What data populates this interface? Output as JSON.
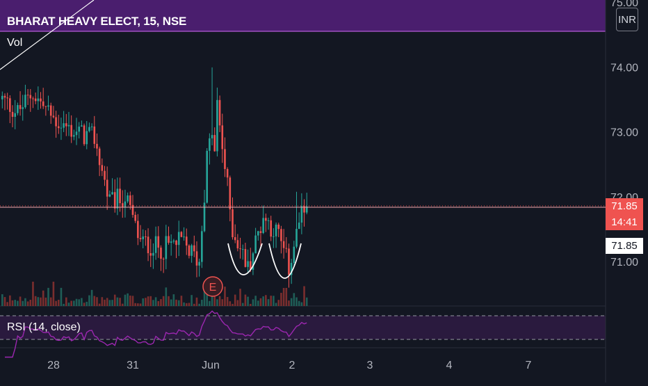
{
  "header": {
    "title": "BHARAT HEAVY ELECT, 15, NSE",
    "currency": "INR"
  },
  "panes": {
    "volume_label": "Vol",
    "rsi_label": "RSI (14, close)"
  },
  "price_tags": {
    "last_price": "71.85",
    "countdown": "14:41",
    "reference_price": "71.85"
  },
  "earnings_marker": "E",
  "colors": {
    "up": "#26a69a",
    "down": "#ef5350",
    "rsi": "#9c27b0",
    "background": "#131722",
    "highlight": "#4a1e6e"
  },
  "chart_data": {
    "type": "candlestick",
    "interval": "15",
    "price_axis": {
      "ticks": [
        "75.00",
        "74.00",
        "73.00",
        "72.00",
        "71.00"
      ],
      "range": [
        70.25,
        75.15
      ]
    },
    "time_axis": {
      "ticks": [
        "28",
        "31",
        "Jun",
        "2",
        "3",
        "4",
        "7"
      ]
    },
    "last_price": 71.85,
    "rsi": {
      "period": 14,
      "source": "close",
      "levels": [
        70,
        30
      ]
    },
    "series": [
      {
        "name": "candles",
        "kps": [
          {
            "i": 0,
            "p": 73.5
          },
          {
            "i": 6,
            "p": 73.3
          },
          {
            "i": 12,
            "p": 73.6
          },
          {
            "i": 20,
            "p": 73.2
          },
          {
            "i": 28,
            "p": 73.0
          },
          {
            "i": 36,
            "p": 72.9
          },
          {
            "i": 42,
            "p": 71.9
          },
          {
            "i": 48,
            "p": 72.0
          },
          {
            "i": 54,
            "p": 71.3
          },
          {
            "i": 62,
            "p": 71.2
          },
          {
            "i": 70,
            "p": 71.3
          },
          {
            "i": 77,
            "p": 71.0
          },
          {
            "i": 80,
            "p": 72.6
          },
          {
            "i": 84,
            "p": 73.4
          },
          {
            "i": 90,
            "p": 71.5
          },
          {
            "i": 96,
            "p": 70.9
          },
          {
            "i": 102,
            "p": 71.7
          },
          {
            "i": 108,
            "p": 71.4
          },
          {
            "i": 112,
            "p": 70.9
          },
          {
            "i": 116,
            "p": 71.6
          },
          {
            "i": 119,
            "p": 71.85
          }
        ]
      }
    ]
  }
}
